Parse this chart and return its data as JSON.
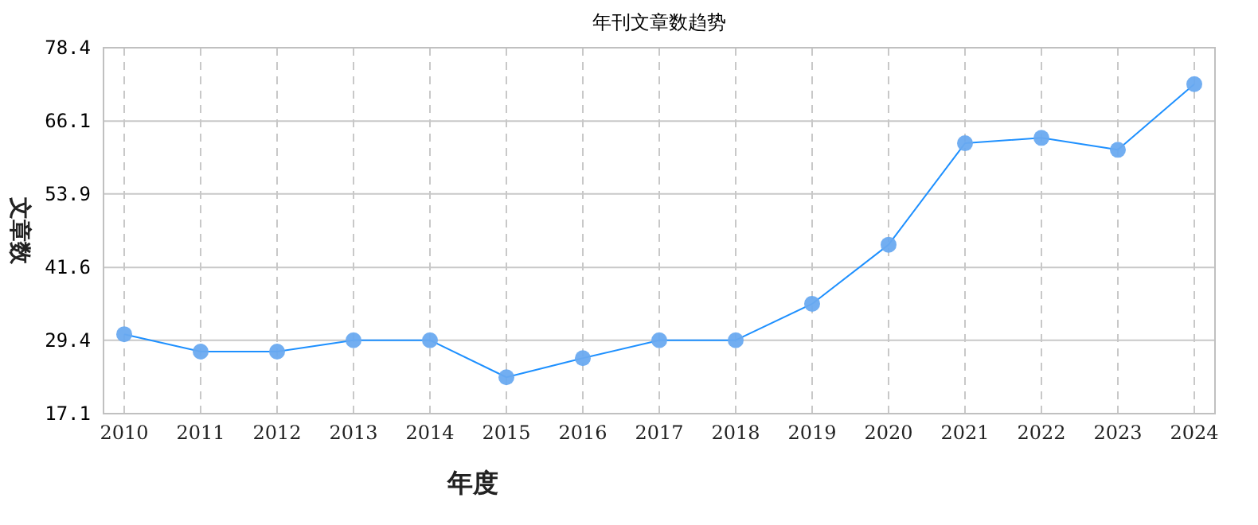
{
  "chart_data": {
    "type": "line",
    "title": "年刊文章数趋势",
    "xlabel": "年度",
    "ylabel": "文章数",
    "categories": [
      "2010",
      "2011",
      "2012",
      "2013",
      "2014",
      "2015",
      "2016",
      "2017",
      "2018",
      "2019",
      "2020",
      "2021",
      "2022",
      "2023",
      "2024"
    ],
    "series": [
      {
        "color": "#1e90ff",
        "values": [
          30.4,
          27.5,
          27.5,
          29.4,
          29.4,
          23.2,
          26.4,
          29.4,
          29.4,
          35.5,
          45.4,
          62.4,
          63.3,
          61.3,
          72.3
        ]
      }
    ],
    "ylim": [
      17.1,
      78.4
    ],
    "yticks": [
      17.1,
      29.4,
      41.6,
      53.9,
      66.1,
      78.4
    ],
    "grid": true,
    "marker": "circle",
    "line_style": "solid"
  }
}
